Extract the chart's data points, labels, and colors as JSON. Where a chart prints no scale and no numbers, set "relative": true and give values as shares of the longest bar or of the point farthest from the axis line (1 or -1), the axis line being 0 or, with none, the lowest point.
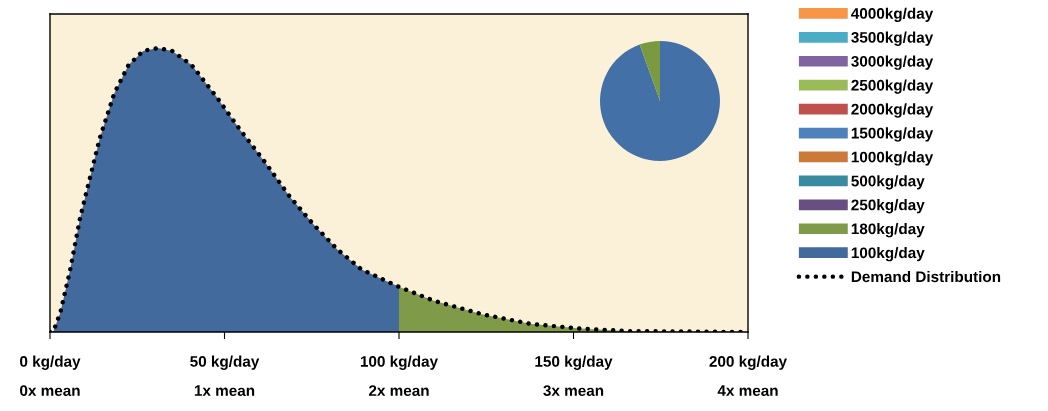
{
  "chart_data": [
    {
      "type": "area",
      "relative": true,
      "xlim": [
        0,
        200
      ],
      "xticks": [
        {
          "value": 0,
          "label": "0 kg/day"
        },
        {
          "value": 50,
          "label": "50 kg/day"
        },
        {
          "value": 100,
          "label": "100 kg/day"
        },
        {
          "value": 150,
          "label": "150 kg/day"
        },
        {
          "value": 200,
          "label": "200 kg/day"
        }
      ],
      "annotations": [
        "0x mean",
        "1x mean",
        "2x mean",
        "3x mean",
        "4x mean"
      ],
      "tick_labels": "x",
      "grid": false,
      "legend": "right",
      "series": [
        {
          "name": "4000kg/day",
          "color": "#f79646"
        },
        {
          "name": "3500kg/day",
          "color": "#4bacc6"
        },
        {
          "name": "3000kg/day",
          "color": "#8064a2"
        },
        {
          "name": "2500kg/day",
          "color": "#9bbb59"
        },
        {
          "name": "2000kg/day",
          "color": "#c0504d"
        },
        {
          "name": "1500kg/day",
          "color": "#4f81bd"
        },
        {
          "name": "1000kg/day",
          "color": "#cc7a3a"
        },
        {
          "name": "500kg/day",
          "color": "#3b8ba0"
        },
        {
          "name": "250kg/day",
          "color": "#674f82"
        },
        {
          "name": "180kg/day",
          "color": "#7f9a48",
          "x": [
            100,
            110,
            124,
            138,
            152,
            166,
            180,
            196.5,
            200
          ],
          "values": [
            0.159,
            0.11,
            0.062,
            0.028,
            0.012,
            0.003,
            0.002,
            0,
            0
          ]
        },
        {
          "name": "100kg/day",
          "color": "#426a9c",
          "x": [
            0,
            1,
            3,
            5.8,
            8.6,
            11.4,
            14.2,
            18.4,
            22.5,
            26.7,
            30.9,
            35,
            40.6,
            47.6,
            54.6,
            61.5,
            68.5,
            75.4,
            82.4,
            89.3,
            96.3,
            100
          ],
          "values": [
            0,
            0.003,
            0.07,
            0.22,
            0.4,
            0.54,
            0.68,
            0.84,
            0.94,
            0.99,
            1,
            0.99,
            0.94,
            0.83,
            0.71,
            0.6,
            0.48,
            0.38,
            0.29,
            0.22,
            0.18,
            0.159
          ]
        },
        {
          "name": "Demand Distribution",
          "type": "line",
          "color": "#000000",
          "line_style": "dotted",
          "x": [
            0,
            1,
            3,
            5.8,
            8.6,
            11.4,
            14.2,
            18.4,
            22.5,
            26.7,
            30.9,
            35,
            40.6,
            47.6,
            54.6,
            61.5,
            68.5,
            75.4,
            82.4,
            89.3,
            96.3,
            100,
            110,
            124,
            138,
            152,
            166,
            180,
            196.5,
            200
          ],
          "values": [
            0,
            0.003,
            0.07,
            0.22,
            0.4,
            0.54,
            0.68,
            0.84,
            0.94,
            0.99,
            1,
            0.99,
            0.94,
            0.83,
            0.71,
            0.6,
            0.48,
            0.38,
            0.29,
            0.22,
            0.18,
            0.159,
            0.11,
            0.062,
            0.028,
            0.012,
            0.003,
            0.002,
            0,
            0
          ]
        }
      ]
    },
    {
      "type": "pie",
      "categories": [
        null,
        null
      ],
      "values": [
        94.5,
        5.5
      ],
      "colors": [
        "#4470a8",
        "#7a9a40"
      ]
    }
  ]
}
